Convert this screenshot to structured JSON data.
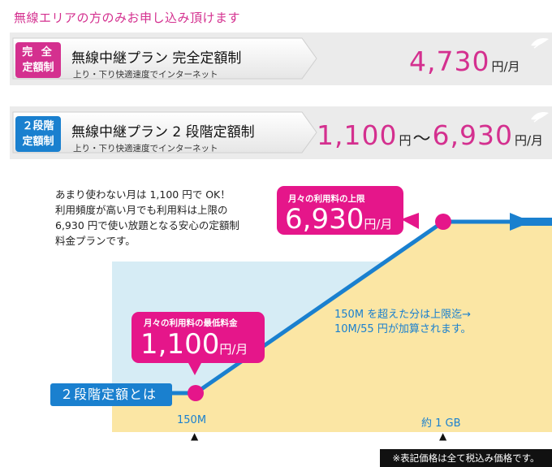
{
  "heading": "無線エリアの方のみお申し込み頂けます",
  "plans": [
    {
      "badge_line1": "完 全",
      "badge_line2": "定額制",
      "name": "無線中継プラン 完全定額制",
      "sub": "上り・下り快適速度でインターネット",
      "price": "4,730",
      "unit": "円/月",
      "badge_color": "#d4308f"
    },
    {
      "badge_line1": "２段階",
      "badge_line2": "定額制",
      "name": "無線中継プラン 2 段階定額制",
      "sub": "上り・下り快適速度でインターネット",
      "price_min": "1,100",
      "unit_min": "円",
      "separator": "～",
      "price_max": "6,930",
      "unit_max": "円/月",
      "badge_color": "#1a80cf"
    }
  ],
  "description": [
    "あまり使わない月は 1,100 円で OK！",
    "利用頻度が高い月でも利用料は上限の",
    "6,930 円で使い放題となる安心の定額制",
    "料金プランです。"
  ],
  "callout_max": {
    "title": "月々の利用料の上限",
    "value": "6,930",
    "unit": "円/月"
  },
  "callout_min": {
    "title": "月々の利用料の最低料金",
    "value": "1,100",
    "unit": "円/月"
  },
  "over_text": [
    "150M を超えた分は上限迄→",
    "10M/55 円が加算されます。"
  ],
  "step_label": "２段階定額とは",
  "x_labels": [
    "150M",
    "約 1 GB"
  ],
  "tick_marker": "▲",
  "note": "※表記価格は全て税込み価格です。",
  "colors": {
    "pink": "#e5168a",
    "blue": "#1a80cf",
    "light_blue_area": "#d6ecf5",
    "light_yellow_area": "#fbe6a4",
    "gray_band": "#ebebeb"
  },
  "icons": [
    "leaf-icon",
    "arrow-icon"
  ]
}
